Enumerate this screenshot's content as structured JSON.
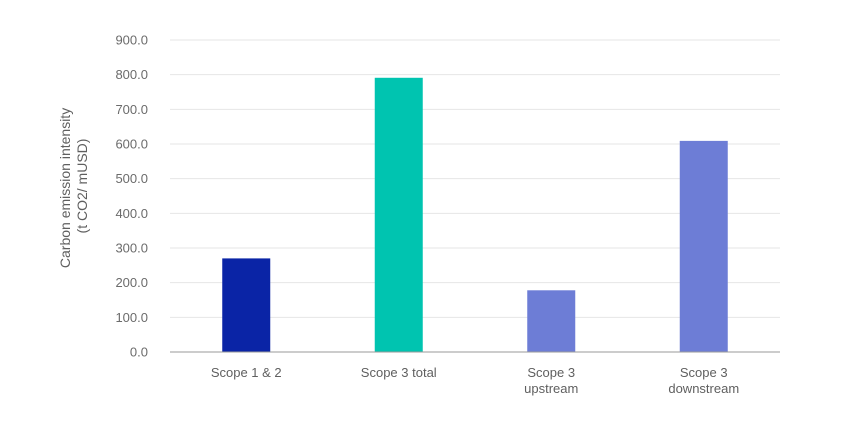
{
  "chart_data": {
    "type": "bar",
    "categories": [
      "Scope 1 & 2",
      "Scope 3 total",
      "Scope 3 upstream",
      "Scope 3 downstream"
    ],
    "category_lines": [
      [
        "Scope 1 & 2"
      ],
      [
        "Scope 3 total"
      ],
      [
        "Scope 3",
        "upstream"
      ],
      [
        "Scope 3",
        "downstream"
      ]
    ],
    "values": [
      270,
      791,
      178,
      609
    ],
    "bar_colors": [
      "#0a24a6",
      "#00c4b0",
      "#6d7dd6",
      "#6d7dd6"
    ],
    "ylabel_lines": [
      "Carbon emission intensity",
      "(t CO2/ mUSD)"
    ],
    "ylim": [
      0,
      900
    ],
    "yticks": [
      "0.0",
      "100.0",
      "200.0",
      "300.0",
      "400.0",
      "500.0",
      "600.0",
      "700.0",
      "800.0",
      "900.0"
    ],
    "grid": true,
    "legend": "none"
  }
}
